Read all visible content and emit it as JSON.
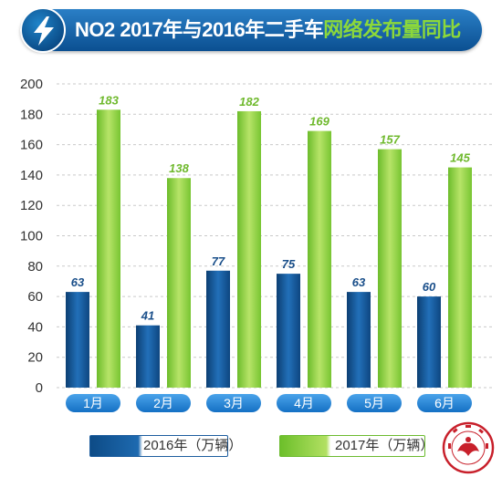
{
  "header": {
    "title_prefix": "NO2 2017年与2016年二手车",
    "title_highlight": "网络发布量同比"
  },
  "legend": {
    "label_2016": "2016年（万辆）",
    "label_2017": "2017年（万辆）"
  },
  "colors": {
    "series_2016": "#1b5fa3",
    "series_2017": "#8fd13f",
    "month_button": "#2283d4"
  },
  "chart_data": {
    "type": "bar",
    "categories": [
      "1月",
      "2月",
      "3月",
      "4月",
      "5月",
      "6月"
    ],
    "series": [
      {
        "name": "2016年（万辆）",
        "values": [
          63,
          41,
          77,
          75,
          63,
          60
        ]
      },
      {
        "name": "2017年（万辆）",
        "values": [
          183,
          138,
          182,
          169,
          157,
          145
        ]
      }
    ],
    "ylim": [
      0,
      200
    ],
    "yticks": [
      0,
      20,
      40,
      60,
      80,
      100,
      120,
      140,
      160,
      180,
      200
    ],
    "grid": true,
    "legend_position": "bottom"
  }
}
